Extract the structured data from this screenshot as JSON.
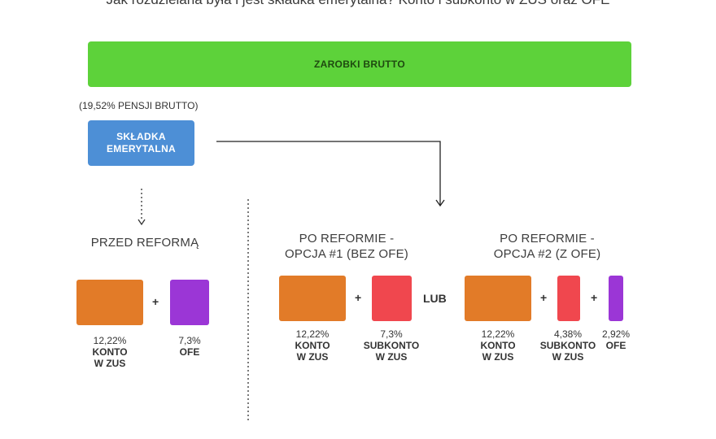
{
  "title": "Jak rozdzielana była i jest składka emerytalna? Konto i subkonto w ZUS oraz OFE",
  "banner": "ZAROBKI BRUTTO",
  "pct_note": "(19,52% PENSJI BRUTTO)",
  "skladka": [
    "SKŁADKA",
    "EMERYTALNA"
  ],
  "operators": {
    "plus": "+",
    "lub": "LUB"
  },
  "sections": {
    "przed": {
      "heading": [
        "PRZED REFORMĄ"
      ],
      "items": [
        {
          "pct": "12,22%",
          "lines": [
            "KONTO",
            "W ZUS"
          ],
          "color": "#e27b28"
        },
        {
          "pct": "7,3%",
          "lines": [
            "OFE"
          ],
          "color": "#9b36d6"
        }
      ]
    },
    "opcja1": {
      "heading": [
        "PO REFORMIE -",
        "OPCJA #1 (BEZ OFE)"
      ],
      "items": [
        {
          "pct": "12,22%",
          "lines": [
            "KONTO",
            "W ZUS"
          ],
          "color": "#e27b28"
        },
        {
          "pct": "7,3%",
          "lines": [
            "SUBKONTO",
            "W ZUS"
          ],
          "color": "#f0474e"
        }
      ]
    },
    "opcja2": {
      "heading": [
        "PO REFORMIE -",
        "OPCJA #2 (Z OFE)"
      ],
      "items": [
        {
          "pct": "12,22%",
          "lines": [
            "KONTO",
            "W ZUS"
          ],
          "color": "#e27b28"
        },
        {
          "pct": "4,38%",
          "lines": [
            "SUBKONTO",
            "W ZUS"
          ],
          "color": "#f0474e"
        },
        {
          "pct": "2,92%",
          "lines": [
            "OFE"
          ],
          "color": "#9b36d6"
        }
      ]
    }
  }
}
